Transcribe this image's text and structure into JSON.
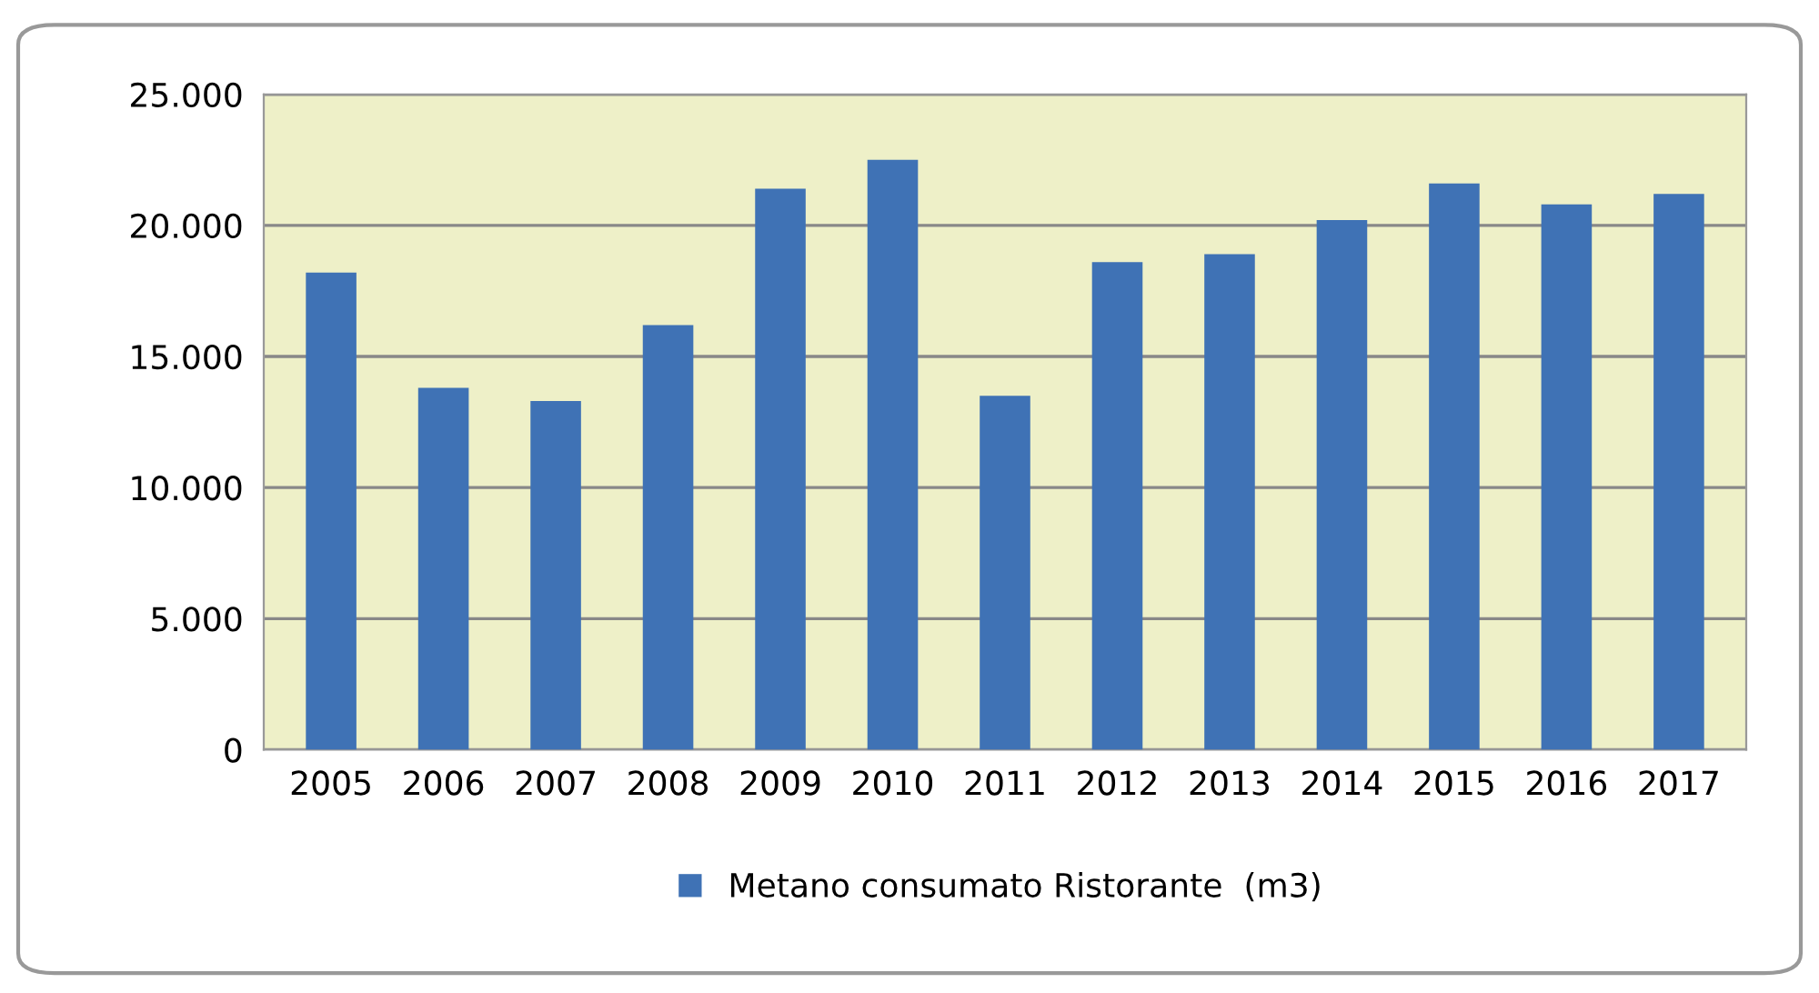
{
  "chart_data": {
    "type": "bar",
    "categories": [
      "2005",
      "2006",
      "2007",
      "2008",
      "2009",
      "2010",
      "2011",
      "2012",
      "2013",
      "2014",
      "2015",
      "2016",
      "2017"
    ],
    "series": [
      {
        "name": "Metano consumato Ristorante  (m3)",
        "color": "#3f72b5",
        "values": [
          18200,
          13800,
          13300,
          16200,
          21400,
          22500,
          13500,
          18600,
          18900,
          20200,
          21600,
          20800,
          21200
        ]
      }
    ],
    "ylim": [
      0,
      25000
    ],
    "yticks": [
      {
        "value": 0,
        "label": "0"
      },
      {
        "value": 5000,
        "label": "5.000"
      },
      {
        "value": 10000,
        "label": "10.000"
      },
      {
        "value": 15000,
        "label": "15.000"
      },
      {
        "value": 20000,
        "label": "20.000"
      },
      {
        "value": 25000,
        "label": "25.000"
      }
    ],
    "grid": "y",
    "legend": "bottom"
  }
}
